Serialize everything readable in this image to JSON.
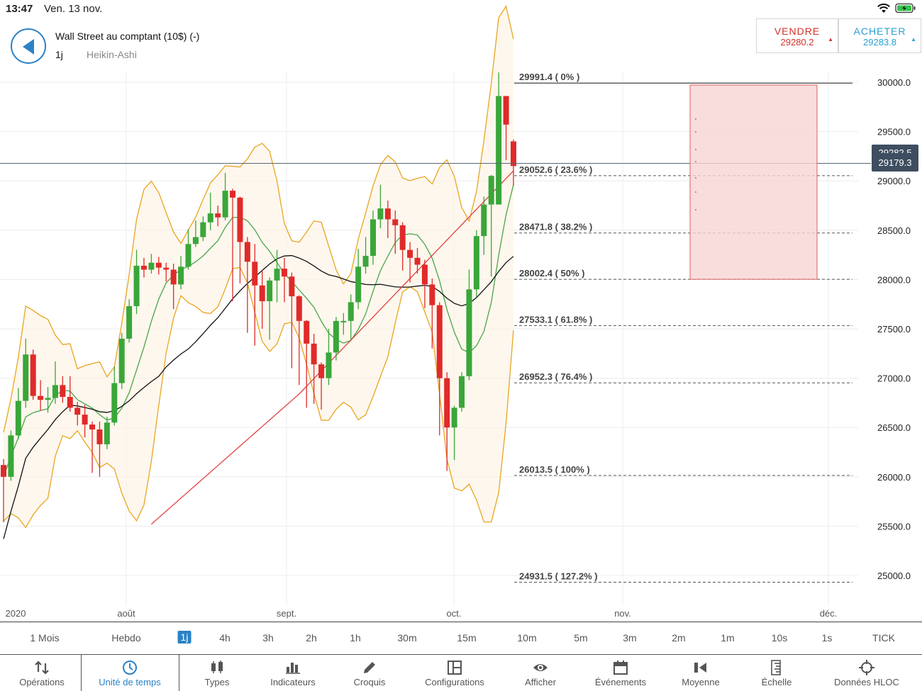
{
  "status_bar": {
    "time": "13:47",
    "date": "Ven. 13 nov."
  },
  "header": {
    "title": "Wall Street au comptant (10$) (-)",
    "timeframe": "1j",
    "chart_type": "Heikin-Ashi"
  },
  "sell": {
    "label": "VENDRE",
    "price": "29280.2"
  },
  "buy": {
    "label": "ACHETER",
    "price": "29283.8"
  },
  "current_price": {
    "line1": "29282.5",
    "line2": "29179.3"
  },
  "colors": {
    "up": "#3aa63a",
    "down": "#e02a2a",
    "accent": "#2a82c6",
    "band": "#e8a520"
  },
  "chart_data": {
    "type": "candlestick",
    "chart_style": "Heikin-Ashi",
    "y_ticks": [
      "30000.0",
      "29500.0",
      "29000.0",
      "28500.0",
      "28000.0",
      "27500.0",
      "27000.0",
      "26500.0",
      "26000.0",
      "25500.0",
      "25000.0"
    ],
    "ylim": [
      24700,
      30250
    ],
    "x_labels": [
      "2020",
      "août",
      "sept.",
      "oct.",
      "nov.",
      "déc."
    ],
    "fib_levels": [
      {
        "label": "29991.4 ( 0% )",
        "value": 29991.4
      },
      {
        "label": "29052.6 ( 23.6% )",
        "value": 29052.6
      },
      {
        "label": "28471.8 ( 38.2% )",
        "value": 28471.8
      },
      {
        "label": "28002.4 ( 50% )",
        "value": 28002.4
      },
      {
        "label": "27533.1 ( 61.8% )",
        "value": 27533.1
      },
      {
        "label": "26952.3 ( 76.4% )",
        "value": 26952.3
      },
      {
        "label": "26013.5 ( 100% )",
        "value": 26013.5
      },
      {
        "label": "24931.5 ( 127.2% )",
        "value": 24931.5
      }
    ],
    "candles": [
      [
        26120,
        26000,
        26180,
        25540
      ],
      [
        26000,
        26420,
        26470,
        25960
      ],
      [
        26420,
        26770,
        26900,
        26380
      ],
      [
        26770,
        27240,
        27400,
        26700
      ],
      [
        27240,
        26820,
        27290,
        26780
      ],
      [
        26820,
        26780,
        26980,
        26670
      ],
      [
        26780,
        26800,
        26910,
        26650
      ],
      [
        26800,
        26930,
        27170,
        26740
      ],
      [
        26930,
        26810,
        27020,
        26750
      ],
      [
        26810,
        26700,
        27020,
        26660
      ],
      [
        26700,
        26630,
        26760,
        26520
      ],
      [
        26630,
        26530,
        26730,
        26400
      ],
      [
        26530,
        26480,
        26560,
        26040
      ],
      [
        26480,
        26330,
        26560,
        26000
      ],
      [
        26330,
        26550,
        26610,
        26280
      ],
      [
        26550,
        26950,
        27120,
        26520
      ],
      [
        26950,
        27400,
        27460,
        26890
      ],
      [
        27400,
        27730,
        27800,
        27360
      ],
      [
        27730,
        28140,
        28300,
        27650
      ],
      [
        28140,
        28100,
        28220,
        28020
      ],
      [
        28100,
        28170,
        28260,
        28060
      ],
      [
        28170,
        28120,
        28230,
        28050
      ],
      [
        28120,
        28100,
        28170,
        27980
      ],
      [
        28100,
        27950,
        28160,
        27700
      ],
      [
        27950,
        28130,
        28240,
        27900
      ],
      [
        28130,
        28360,
        28510,
        28100
      ],
      [
        28360,
        28430,
        28600,
        28330
      ],
      [
        28430,
        28580,
        28640,
        28390
      ],
      [
        28580,
        28670,
        28880,
        28500
      ],
      [
        28670,
        28630,
        28750,
        28540
      ],
      [
        28630,
        28900,
        29080,
        28600
      ],
      [
        28900,
        28830,
        28920,
        27780
      ],
      [
        28830,
        28380,
        28840,
        27960
      ],
      [
        28380,
        28180,
        28430,
        27460
      ],
      [
        28180,
        27940,
        28360,
        27330
      ],
      [
        27940,
        27780,
        28090,
        27500
      ],
      [
        27780,
        27990,
        28020,
        27390
      ],
      [
        27990,
        28110,
        28300,
        27770
      ],
      [
        28110,
        28030,
        28220,
        27770
      ],
      [
        28030,
        27830,
        28070,
        27100
      ],
      [
        27830,
        27580,
        27840,
        26930
      ],
      [
        27580,
        27350,
        27590,
        26700
      ],
      [
        27350,
        27140,
        27450,
        26740
      ],
      [
        27140,
        27000,
        27160,
        26680
      ],
      [
        27000,
        27260,
        27500,
        26930
      ],
      [
        27260,
        27580,
        27620,
        27180
      ],
      [
        27580,
        27580,
        27660,
        27440
      ],
      [
        27580,
        27770,
        27850,
        27390
      ],
      [
        27770,
        28130,
        28310,
        27700
      ],
      [
        28130,
        28240,
        28430,
        28060
      ],
      [
        28240,
        28610,
        28700,
        28150
      ],
      [
        28610,
        28720,
        28960,
        28520
      ],
      [
        28720,
        28610,
        28800,
        28420
      ],
      [
        28610,
        28550,
        28700,
        28260
      ],
      [
        28550,
        28300,
        28580,
        28090
      ],
      [
        28300,
        28220,
        28380,
        27970
      ],
      [
        28220,
        28150,
        28320,
        28060
      ],
      [
        28150,
        27950,
        28200,
        27710
      ],
      [
        27950,
        27740,
        28010,
        27300
      ],
      [
        27740,
        27000,
        27770,
        26420
      ],
      [
        27000,
        26500,
        27060,
        26060
      ],
      [
        26500,
        26700,
        26720,
        26170
      ],
      [
        26700,
        27020,
        27060,
        26660
      ],
      [
        27020,
        27900,
        28100,
        26980
      ],
      [
        27900,
        28440,
        28500,
        27820
      ],
      [
        28440,
        28760,
        28840,
        28250
      ],
      [
        28760,
        29050,
        29060,
        28030
      ],
      [
        28760,
        29860,
        30100,
        28760
      ],
      [
        29860,
        29570,
        29700,
        29210
      ],
      [
        29400,
        29150,
        29420,
        28950
      ]
    ]
  },
  "timeframes": [
    "1 Mois",
    "Hebdo",
    "1j",
    "4h",
    "3h",
    "2h",
    "1h",
    "30m",
    "15m",
    "10m",
    "5m",
    "3m",
    "2m",
    "1m",
    "10s",
    "1s",
    "TICK"
  ],
  "active_timeframe": "1j",
  "toolbar": [
    "Opérations",
    "Unité de temps",
    "Types",
    "Indicateurs",
    "Croquis",
    "Configurations",
    "Afficher",
    "Événements",
    "Moyenne",
    "Échelle",
    "Données HLOC"
  ],
  "active_tool": "Unité de temps",
  "icons": [
    "wifi-icon",
    "battery-icon",
    "back-arrow-icon",
    "transfer-icon",
    "clock-icon",
    "candles-icon",
    "bar-chart-icon",
    "pencil-icon",
    "layout-icon",
    "eye-icon",
    "calendar-icon",
    "audio-icon",
    "scale-icon",
    "crosshair-icon"
  ]
}
